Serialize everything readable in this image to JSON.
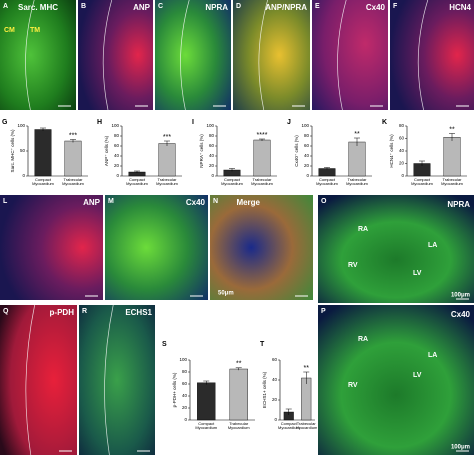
{
  "image_panels": [
    {
      "letter": "A",
      "labels": [
        "Sarc. MHC",
        "CM",
        "TM"
      ]
    },
    {
      "letter": "B",
      "labels": [
        "ANP"
      ]
    },
    {
      "letter": "C",
      "labels": [
        "NPRA"
      ]
    },
    {
      "letter": "D",
      "labels": [
        "ANP/NPRA"
      ]
    },
    {
      "letter": "E",
      "labels": [
        "Cx40"
      ]
    },
    {
      "letter": "F",
      "labels": [
        "HCN4"
      ]
    },
    {
      "letter": "L",
      "labels": [
        "ANP"
      ]
    },
    {
      "letter": "M",
      "labels": [
        "Cx40"
      ]
    },
    {
      "letter": "N",
      "labels": [
        "Merge",
        "50μm"
      ]
    },
    {
      "letter": "O",
      "labels": [
        "NPRA",
        "RA",
        "LA",
        "RV",
        "LV",
        "100μm"
      ]
    },
    {
      "letter": "Q",
      "labels": [
        "p-PDH"
      ]
    },
    {
      "letter": "R",
      "labels": [
        "ECHS1"
      ]
    },
    {
      "letter": "P",
      "labels": [
        "Cx40",
        "RA",
        "LA",
        "RV",
        "LV",
        "100μm"
      ]
    }
  ],
  "chart_data": [
    {
      "type": "bar",
      "panel": "G",
      "ylabel": "Sarc. MHC⁺ cells (%)",
      "categories": [
        "Compact Myocardium",
        "Trabecular Myocardium"
      ],
      "values": [
        93,
        70
      ],
      "errors": [
        3,
        3
      ],
      "colors": [
        "#2b2b2b",
        "#b8b8b8"
      ],
      "ylim": [
        0,
        100
      ],
      "yticks": [
        0,
        50,
        100
      ],
      "significance": "***"
    },
    {
      "type": "bar",
      "panel": "H",
      "ylabel": "ANP⁺ cells (%)",
      "categories": [
        "Compact Myocardium",
        "Trabecular Myocardium"
      ],
      "values": [
        8,
        65
      ],
      "errors": [
        2,
        5
      ],
      "colors": [
        "#2b2b2b",
        "#b8b8b8"
      ],
      "ylim": [
        0,
        100
      ],
      "yticks": [
        0,
        20,
        40,
        60,
        80,
        100
      ],
      "significance": "***"
    },
    {
      "type": "bar",
      "panel": "I",
      "ylabel": "NPRA⁺ cells (%)",
      "categories": [
        "Compact Myocardium",
        "Trabecular Myocardium"
      ],
      "values": [
        12,
        72
      ],
      "errors": [
        3,
        2
      ],
      "colors": [
        "#2b2b2b",
        "#b8b8b8"
      ],
      "ylim": [
        0,
        100
      ],
      "yticks": [
        0,
        20,
        40,
        60,
        80,
        100
      ],
      "significance": "****"
    },
    {
      "type": "bar",
      "panel": "J",
      "ylabel": "Cx40⁺ cells (%)",
      "categories": [
        "Compact Myocardium",
        "Trabecular Myocardium"
      ],
      "values": [
        15,
        68
      ],
      "errors": [
        2,
        8
      ],
      "colors": [
        "#2b2b2b",
        "#b8b8b8"
      ],
      "ylim": [
        0,
        100
      ],
      "yticks": [
        0,
        20,
        40,
        60,
        80,
        100
      ],
      "significance": "**"
    },
    {
      "type": "bar",
      "panel": "K",
      "ylabel": "HCN4⁺ cells (%)",
      "categories": [
        "Compact Myocardium",
        "Trabecular Myocardium"
      ],
      "values": [
        20,
        62
      ],
      "errors": [
        4,
        6
      ],
      "colors": [
        "#2b2b2b",
        "#b8b8b8"
      ],
      "ylim": [
        0,
        80
      ],
      "yticks": [
        0,
        20,
        40,
        60,
        80
      ],
      "significance": "**"
    },
    {
      "type": "bar",
      "panel": "S",
      "ylabel": "p-PDH+ cells (%)",
      "categories": [
        "Compact Myocardium",
        "Trabecular Myocardium"
      ],
      "values": [
        62,
        85
      ],
      "errors": [
        3,
        2
      ],
      "colors": [
        "#2b2b2b",
        "#b8b8b8"
      ],
      "ylim": [
        0,
        100
      ],
      "yticks": [
        0,
        20,
        40,
        60,
        80,
        100
      ],
      "significance": "**"
    },
    {
      "type": "bar",
      "panel": "T",
      "ylabel": "ECHS1+ cells (%)",
      "categories": [
        "Compact Myocardium",
        "Trabecular Myocardium"
      ],
      "values": [
        8,
        42
      ],
      "errors": [
        3,
        6
      ],
      "colors": [
        "#2b2b2b",
        "#b8b8b8"
      ],
      "ylim": [
        0,
        60
      ],
      "yticks": [
        0,
        20,
        40,
        60
      ],
      "significance": "**"
    }
  ]
}
